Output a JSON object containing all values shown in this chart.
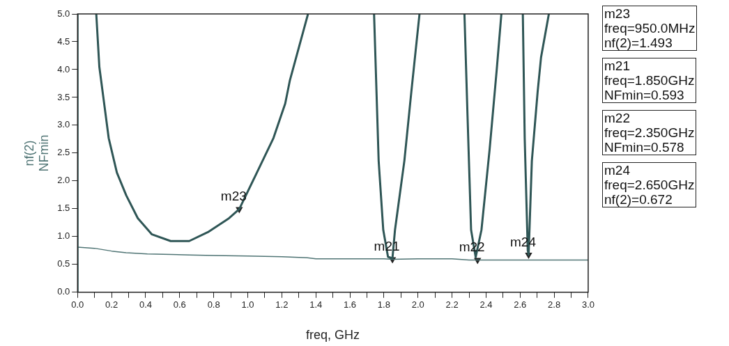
{
  "chart_data": {
    "type": "line",
    "xlabel": "freq, GHz",
    "ylabel": "nf(2)\nNFmin",
    "xlim": [
      0,
      3
    ],
    "ylim": [
      0,
      5
    ],
    "xticks": [
      {
        "value": 0,
        "label": "0.0"
      },
      {
        "value": 0.1,
        "label": null
      },
      {
        "value": 0.2,
        "label": "0.2"
      },
      {
        "value": 0.3,
        "label": null
      },
      {
        "value": 0.4,
        "label": "0.4"
      },
      {
        "value": 0.5,
        "label": null
      },
      {
        "value": 0.6,
        "label": "0.6"
      },
      {
        "value": 0.7,
        "label": null
      },
      {
        "value": 0.8,
        "label": "0.8"
      },
      {
        "value": 0.9,
        "label": null
      },
      {
        "value": 1,
        "label": "1.0"
      },
      {
        "value": 1.1,
        "label": null
      },
      {
        "value": 1.2,
        "label": "1.2"
      },
      {
        "value": 1.3,
        "label": null
      },
      {
        "value": 1.4,
        "label": "1.4"
      },
      {
        "value": 1.5,
        "label": null
      },
      {
        "value": 1.6,
        "label": "1.6"
      },
      {
        "value": 1.7,
        "label": null
      },
      {
        "value": 1.8,
        "label": "1.8"
      },
      {
        "value": 1.9,
        "label": null
      },
      {
        "value": 2,
        "label": "2.0"
      },
      {
        "value": 2.1,
        "label": null
      },
      {
        "value": 2.2,
        "label": "2.2"
      },
      {
        "value": 2.3,
        "label": null
      },
      {
        "value": 2.4,
        "label": "2.4"
      },
      {
        "value": 2.5,
        "label": null
      },
      {
        "value": 2.6,
        "label": "2.6"
      },
      {
        "value": 2.7,
        "label": null
      },
      {
        "value": 2.8,
        "label": "2.8"
      },
      {
        "value": 2.9,
        "label": null
      },
      {
        "value": 3,
        "label": "3.0"
      }
    ],
    "yticks": [
      {
        "value": 0,
        "label": "0.0"
      },
      {
        "value": 0.5,
        "label": "0.5"
      },
      {
        "value": 1,
        "label": "1.0"
      },
      {
        "value": 1.5,
        "label": "1.5"
      },
      {
        "value": 2,
        "label": "2.0"
      },
      {
        "value": 2.5,
        "label": "2.5"
      },
      {
        "value": 3,
        "label": "3.0"
      },
      {
        "value": 3.5,
        "label": "3.5"
      },
      {
        "value": 4,
        "label": "4.0"
      },
      {
        "value": 4.5,
        "label": "4.5"
      },
      {
        "value": 5,
        "label": "5.0"
      }
    ],
    "grid": false,
    "legend": false,
    "marker": "none",
    "line_style": "solid",
    "series": [
      {
        "color": "#2f5656",
        "x": [
          0,
          0,
          0.05,
          0.11,
          0.128,
          0.183,
          0.231,
          0.286,
          0.354,
          0.437,
          0.547,
          0.656,
          0.766,
          0.89,
          0.95,
          1.041,
          1.151,
          1.22,
          1.247,
          1.354,
          1.5,
          1.742,
          1.769,
          1.796,
          1.824,
          1.85,
          1.865,
          1.92,
          1.961,
          2.009,
          2.1,
          2.273,
          2.291,
          2.312,
          2.339,
          2.373,
          2.421,
          2.463,
          2.49,
          2.55,
          2.616,
          2.627,
          2.645,
          2.65,
          2.669,
          2.703,
          2.723,
          2.769
        ],
        "values": [
          0,
          5,
          null,
          5,
          4.05,
          2.77,
          2.15,
          1.74,
          1.33,
          1.04,
          0.92,
          0.92,
          1.08,
          1.33,
          1.493,
          2.07,
          2.77,
          3.39,
          3.8,
          5,
          null,
          5,
          2.36,
          1.12,
          0.635,
          0.61,
          1.12,
          2.36,
          3.6,
          5,
          null,
          5,
          3.18,
          1.12,
          0.63,
          1.12,
          2.57,
          4.01,
          5,
          null,
          5,
          2.77,
          0.75,
          0.672,
          2.36,
          3.6,
          4.22,
          5
        ]
      },
      {
        "color": "#4f7474",
        "x": [
          0,
          0.1,
          0.2,
          0.285,
          0.41,
          0.55,
          0.656,
          0.8,
          1.0,
          1.2,
          1.35,
          1.4,
          1.6,
          1.8,
          1.85,
          2.0,
          2.2,
          2.3,
          2.35,
          2.5,
          2.7,
          3.0
        ],
        "values": [
          0.81,
          0.79,
          0.74,
          0.71,
          0.69,
          0.68,
          0.67,
          0.66,
          0.65,
          0.64,
          0.62,
          0.6,
          0.6,
          0.6,
          0.593,
          0.6,
          0.6,
          0.58,
          0.578,
          0.578,
          0.578,
          0.578
        ]
      },
      {
        "type": "scatter",
        "marker": "triangle",
        "color": "#222222",
        "x": [
          0.95,
          1.85,
          2.35,
          2.65
        ],
        "values": [
          1.493,
          0.593,
          0.578,
          0.672
        ]
      }
    ],
    "annotations": [
      {
        "text": "m23",
        "x": 0.95,
        "y": 1.493
      },
      {
        "text": "m21",
        "x": 1.85,
        "y": 0.593
      },
      {
        "text": "m22",
        "x": 2.35,
        "y": 0.578
      },
      {
        "text": "m24",
        "x": 2.65,
        "y": 0.672
      },
      "m23\nfreq=950.0MHz\nnf(2)=1.493",
      "m21\nfreq=1.850GHz\nNFmin=0.593",
      "m22\nfreq=2.350GHz\nNFmin=0.578",
      "m24\nfreq=2.650GHz\nnf(2)=0.672"
    ]
  }
}
